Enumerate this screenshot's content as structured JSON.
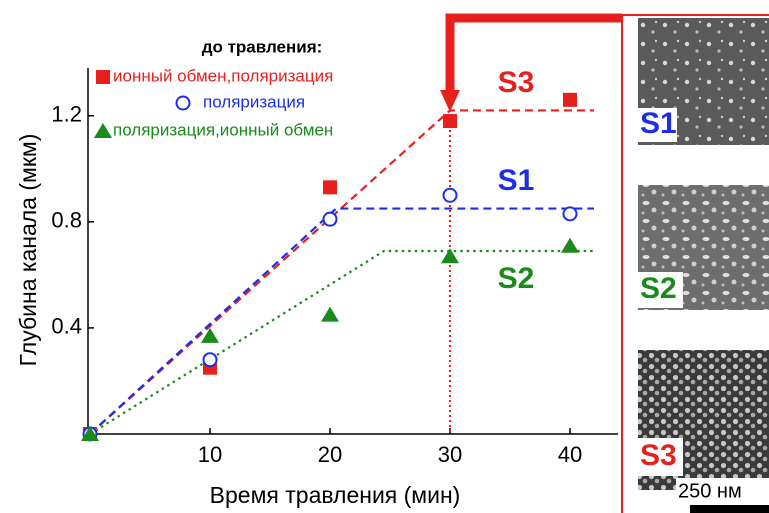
{
  "chart_data": {
    "type": "scatter",
    "x_label": "Время травления (мин)",
    "y_label": "Глубина канала (мкм)",
    "legend_title": "до травления:",
    "xlim": [
      0,
      44
    ],
    "xticks": [
      10,
      20,
      30,
      40
    ],
    "ylim": [
      0,
      1.38
    ],
    "yticks": [
      0.4,
      0.8,
      1.2
    ],
    "series": [
      {
        "name": "ионный обмен,поляризация",
        "color": "#e8201c",
        "marker": "square",
        "x": [
          0,
          10,
          20,
          30,
          40
        ],
        "values": [
          0,
          0.25,
          0.93,
          1.18,
          1.26
        ]
      },
      {
        "name": "поляризация",
        "color": "#1c2ee8",
        "marker": "circle",
        "x": [
          0,
          10,
          20,
          30,
          40
        ],
        "values": [
          0,
          0.28,
          0.81,
          0.9,
          0.83
        ]
      },
      {
        "name": "поляризация,ионный обмен",
        "color": "#1a8a1a",
        "marker": "triangle",
        "x": [
          0,
          10,
          20,
          30,
          40
        ],
        "values": [
          0,
          0.37,
          0.45,
          0.67,
          0.71
        ]
      }
    ],
    "fit_lines": [
      {
        "color": "#e8201c",
        "style": "dashed",
        "x": [
          0,
          30,
          42
        ],
        "values": [
          0,
          1.22,
          1.22
        ]
      },
      {
        "color": "#1c2ee8",
        "style": "dashed",
        "x": [
          0,
          20.5,
          42
        ],
        "values": [
          0,
          0.85,
          0.85
        ]
      },
      {
        "color": "#1a8a1a",
        "style": "dotted",
        "x": [
          0,
          24.5,
          42
        ],
        "values": [
          0,
          0.69,
          0.69
        ]
      }
    ],
    "vline": {
      "x": 30,
      "color": "#e8201c"
    },
    "annotations": [
      {
        "text": "S3",
        "color": "#e8201c",
        "x": 33,
        "y": 1.32
      },
      {
        "text": "S1",
        "color": "#1c2ee8",
        "x": 33,
        "y": 0.95
      },
      {
        "text": "S2",
        "color": "#1a8a1a",
        "x": 33,
        "y": 0.58
      }
    ]
  },
  "images": [
    {
      "label": "S1",
      "color": "#1c2ee8"
    },
    {
      "label": "S2",
      "color": "#1a8a1a"
    },
    {
      "label": "S3",
      "color": "#e8201c"
    }
  ],
  "scale_bar": "250 нм"
}
